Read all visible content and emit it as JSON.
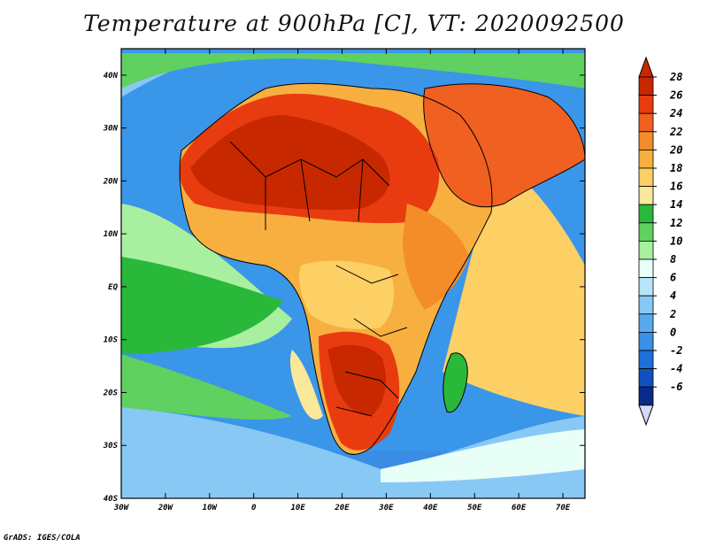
{
  "title": "Temperature at 900hPa [C], VT: 2020092500",
  "footer": "GrADS: IGES/COLA",
  "map": {
    "lon_ticks": [
      "30W",
      "20W",
      "10W",
      "0",
      "10E",
      "20E",
      "30E",
      "40E",
      "50E",
      "60E",
      "70E"
    ],
    "lat_ticks": [
      "40N",
      "30N",
      "20N",
      "10N",
      "EQ",
      "10S",
      "20S",
      "30S",
      "40S"
    ],
    "lon_range": [
      -30,
      75
    ],
    "lat_range": [
      -40,
      45
    ],
    "background_color": "#3a96e8",
    "land_border_color": "#000000"
  },
  "colorbar": {
    "labels": [
      "28",
      "26",
      "24",
      "22",
      "20",
      "18",
      "16",
      "14",
      "12",
      "10",
      "8",
      "6",
      "4",
      "2",
      "0",
      "-2",
      "-4",
      "-6"
    ],
    "colors": [
      "#c82800",
      "#e83c10",
      "#f06020",
      "#f58c2a",
      "#f7b040",
      "#fdd065",
      "#fbe89a",
      "#2ab83a",
      "#60d060",
      "#a8f0a0",
      "#e8fff8",
      "#b8e4f8",
      "#88c8f4",
      "#58aaf0",
      "#3a90e8",
      "#1e70d8",
      "#1050c0",
      "#0a2a8a",
      "#0a0a55"
    ],
    "arrow_top_color": "#c82800",
    "arrow_bottom_color": "#d8d8f8"
  }
}
